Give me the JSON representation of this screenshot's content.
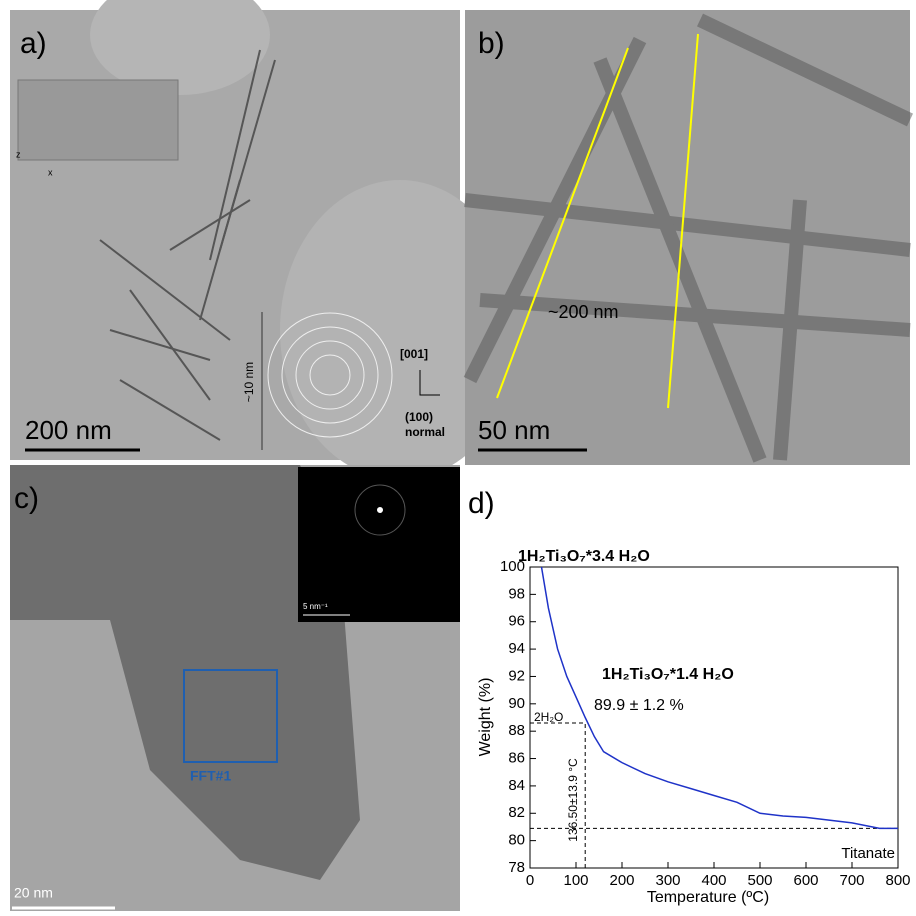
{
  "panels": {
    "a": {
      "label": "a)",
      "scale_bar": "200  nm",
      "height_label": "~10 nm",
      "dir_up": "[001]",
      "dir_right": "(100)",
      "dir_note": "normal",
      "axis_z": "z",
      "axis_x": "x"
    },
    "b": {
      "label": "b)",
      "length_label": "~200 nm",
      "scale_bar": "50  nm"
    },
    "c": {
      "label": "c)",
      "inset_scale": "5 nm⁻¹",
      "box_label": "FFT#1",
      "scale_bar": "20 nm"
    }
  },
  "chart_data": {
    "type": "line",
    "panel_label": "d)",
    "x_label": "Temperature (ºC)",
    "y_label": "Weight (%)",
    "x": [
      25,
      40,
      60,
      80,
      100,
      120,
      140,
      160,
      200,
      250,
      300,
      350,
      400,
      450,
      500,
      550,
      600,
      650,
      700,
      760,
      800
    ],
    "values": [
      100,
      97,
      94,
      92,
      90.5,
      89,
      87.6,
      86.5,
      85.7,
      84.9,
      84.3,
      83.8,
      83.3,
      82.8,
      82,
      81.8,
      81.7,
      81.5,
      81.3,
      80.9,
      80.9
    ],
    "color": "#1f33c8",
    "xlim": [
      0,
      800
    ],
    "ylim": [
      78,
      100
    ],
    "xticks": [
      0,
      100,
      200,
      300,
      400,
      500,
      600,
      700,
      800
    ],
    "yticks": [
      78,
      80,
      82,
      84,
      86,
      88,
      90,
      92,
      94,
      96,
      98,
      100
    ],
    "dashed_y": [
      88.6,
      80.9
    ],
    "dashed_x": [
      120
    ],
    "annotations": {
      "start": "1H₂Ti₃O₇*3.4 H₂O",
      "mid": "1H₂Ti₃O₇*1.4 H₂O",
      "loss": "2H₂O",
      "weight": "89.9 ± 1.2 %",
      "temp": "136.50±13.9 °C",
      "end": "Titanate"
    }
  }
}
